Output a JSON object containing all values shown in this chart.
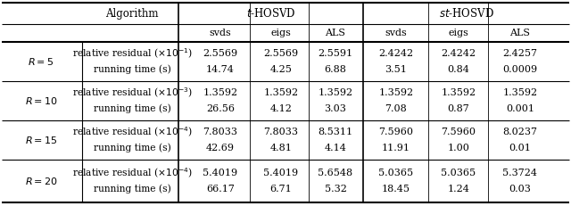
{
  "header1_algo": "Algorithm",
  "header1_thosvd": "$t$-HOSVD",
  "header1_sthosvd": "$st$-HOSVD",
  "header2": [
    "svds",
    "eigs",
    "ALS",
    "svds",
    "eigs",
    "ALS"
  ],
  "rows": [
    {
      "R": "$R=5$",
      "metric1_label": "relative residual ($\\times 10^{-1}$)",
      "metric1_vals": [
        "2.5569",
        "2.5569",
        "2.5591",
        "2.4242",
        "2.4242",
        "2.4257"
      ],
      "metric2_label": "running time (s)",
      "metric2_vals": [
        "14.74",
        "4.25",
        "6.88",
        "3.51",
        "0.84",
        "0.0009"
      ]
    },
    {
      "R": "$R=10$",
      "metric1_label": "relative residual ($\\times 10^{-3}$)",
      "metric1_vals": [
        "1.3592",
        "1.3592",
        "1.3592",
        "1.3592",
        "1.3592",
        "1.3592"
      ],
      "metric2_label": "running time (s)",
      "metric2_vals": [
        "26.56",
        "4.12",
        "3.03",
        "7.08",
        "0.87",
        "0.001"
      ]
    },
    {
      "R": "$R=15$",
      "metric1_label": "relative residual ($\\times 10^{-4}$)",
      "metric1_vals": [
        "7.8033",
        "7.8033",
        "8.5311",
        "7.5960",
        "7.5960",
        "8.0237"
      ],
      "metric2_label": "running time (s)",
      "metric2_vals": [
        "42.69",
        "4.81",
        "4.14",
        "11.91",
        "1.00",
        "0.01"
      ]
    },
    {
      "R": "$R=20$",
      "metric1_label": "relative residual ($\\times 10^{-4}$)",
      "metric1_vals": [
        "5.4019",
        "5.4019",
        "5.6548",
        "5.0365",
        "5.0365",
        "5.3724"
      ],
      "metric2_label": "running time (s)",
      "metric2_vals": [
        "66.17",
        "6.71",
        "5.32",
        "18.45",
        "1.24",
        "0.03"
      ]
    }
  ],
  "fig_width": 6.4,
  "fig_height": 2.31,
  "dpi": 100,
  "font_size": 8.0,
  "bg": "#ffffff"
}
